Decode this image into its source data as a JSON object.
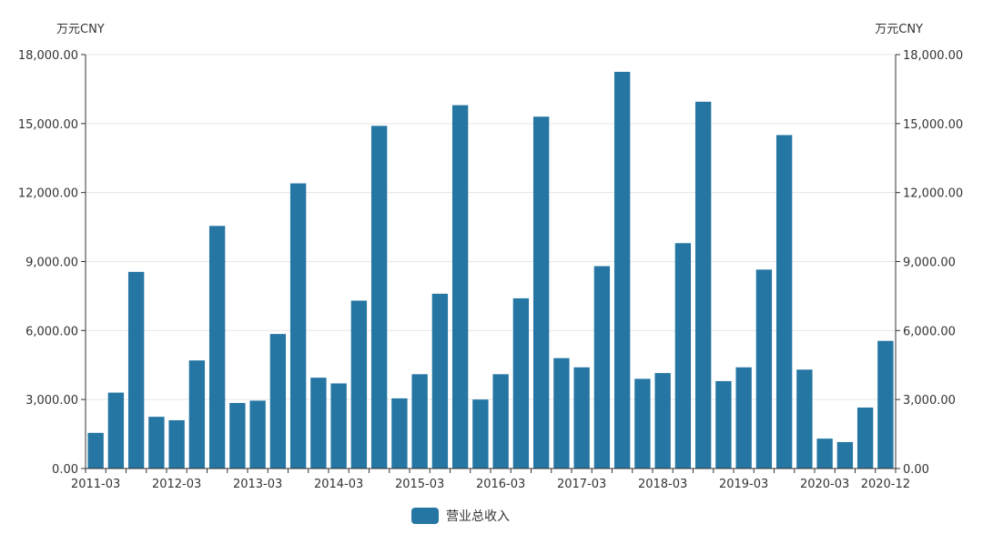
{
  "chart_data": {
    "type": "bar",
    "y_unit_left": "万元CNY",
    "y_unit_right": "万元CNY",
    "ylim": [
      0,
      18000
    ],
    "y_ticks": [
      "0.00",
      "3,000.00",
      "6,000.00",
      "9,000.00",
      "12,000.00",
      "15,000.00",
      "18,000.00"
    ],
    "x_tick_labels": [
      "2011-03",
      "2012-03",
      "2013-03",
      "2014-03",
      "2015-03",
      "2016-03",
      "2017-03",
      "2018-03",
      "2019-03",
      "2020-03",
      "2020-12"
    ],
    "grid": true,
    "legend_position": "bottom-center",
    "categories": [
      "2011-03",
      "2011-06",
      "2011-09",
      "2011-12",
      "2012-03",
      "2012-06",
      "2012-09",
      "2012-12",
      "2013-03",
      "2013-06",
      "2013-09",
      "2013-12",
      "2014-03",
      "2014-06",
      "2014-09",
      "2014-12",
      "2015-03",
      "2015-06",
      "2015-09",
      "2015-12",
      "2016-03",
      "2016-06",
      "2016-09",
      "2016-12",
      "2017-03",
      "2017-06",
      "2017-09",
      "2017-12",
      "2018-03",
      "2018-06",
      "2018-09",
      "2018-12",
      "2019-03",
      "2019-06",
      "2019-09",
      "2019-12",
      "2020-03",
      "2020-06",
      "2020-09",
      "2020-12"
    ],
    "series": [
      {
        "name": "营业总收入",
        "color": "#2576a3",
        "values": [
          1550,
          3300,
          8550,
          2250,
          2100,
          4700,
          10550,
          2850,
          2950,
          5850,
          12400,
          3950,
          3700,
          7300,
          14900,
          3050,
          4100,
          7600,
          15800,
          3000,
          4100,
          7400,
          15300,
          4800,
          4400,
          8800,
          17250,
          3900,
          4150,
          9800,
          15950,
          3800,
          4400,
          8650,
          14500,
          4300,
          1300,
          1150,
          2650,
          5550
        ]
      }
    ]
  }
}
